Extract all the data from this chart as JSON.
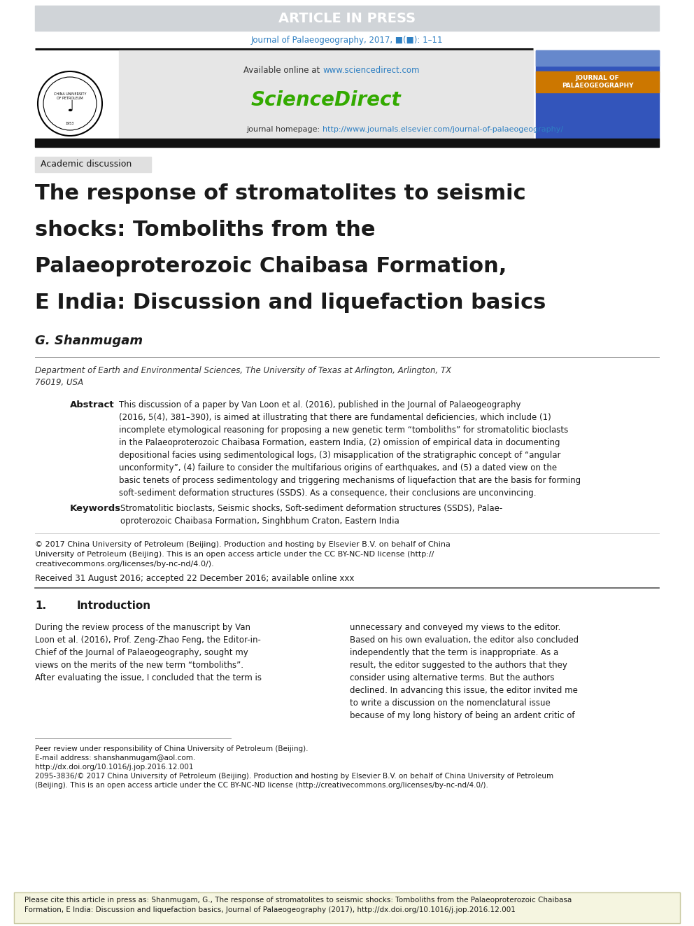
{
  "page_bg": "#ffffff",
  "header_banner_color": "#d0d4d8",
  "header_banner_text": "ARTICLE IN PRESS",
  "header_banner_text_color": "#ffffff",
  "journal_line_color": "#2e7fc2",
  "journal_line_text": "Journal of Palaeogeography, 2017, ■(■): 1–11",
  "thick_rule_color": "#111111",
  "sd_box_bg": "#e6e6e6",
  "sd_url_color": "#2e7fc2",
  "sd_logo_text": "ScienceDirect",
  "sd_logo_color": "#33aa00",
  "sd_homepage_url": "http://www.journals.elsevier.com/journal-of-palaeogeography/",
  "sd_homepage_url_color": "#2e7fc2",
  "section_tag_text": "Academic discussion",
  "section_tag_bg": "#e0e0e0",
  "title_text_line1": "The response of stromatolites to seismic",
  "title_text_line2": "shocks: Tomboliths from the",
  "title_text_line3": "Palaeoproterozoic Chaibasa Formation,",
  "title_text_line4": "E India: Discussion and liquefaction basics",
  "title_color": "#1a1a1a",
  "author_text": "G. Shanmugam",
  "author_color": "#1a1a1a",
  "affil_line1": "Department of Earth and Environmental Sciences, The University of Texas at Arlington, Arlington, TX",
  "affil_line2": "76019, USA",
  "affil_color": "#333333",
  "abstract_label": "Abstract",
  "abstract_text": "This discussion of a paper by Van Loon et al. (2016), published in the Journal of Palaeogeography\n(2016, 5(4), 381–390), is aimed at illustrating that there are fundamental deficiencies, which include (1)\nincomplete etymological reasoning for proposing a new genetic term “tomboliths” for stromatolitic bioclasts\nin the Palaeoproterozoic Chaibasa Formation, eastern India, (2) omission of empirical data in documenting\ndepositional facies using sedimentological logs, (3) misapplication of the stratigraphic concept of “angular\nunconformity”, (4) failure to consider the multifarious origins of earthquakes, and (5) a dated view on the\nbasic tenets of process sedimentology and triggering mechanisms of liquefaction that are the basis for forming\nsoft-sediment deformation structures (SSDS). As a consequence, their conclusions are unconvincing.",
  "keywords_label": "Keywords",
  "keywords_text": "Stromatolitic bioclasts, Seismic shocks, Soft-sediment deformation structures (SSDS), Palae-\noproterozoic Chaibasa Formation, Singhbhum Craton, Eastern India",
  "copyright_line1": "© 2017 China University of Petroleum (Beijing). Production and hosting by Elsevier B.V. on behalf of China",
  "copyright_line2": "University of Petroleum (Beijing). This is an open access article under the CC BY-NC-ND license (http://",
  "copyright_line3": "creativecommons.org/licenses/by-nc-nd/4.0/).",
  "received_text": "Received 31 August 2016; accepted 22 December 2016; available online xxx",
  "intro_num": "1.",
  "intro_title": "Introduction",
  "intro_col1_text": "During the review process of the manuscript by Van\nLoon et al. (2016), Prof. Zeng-Zhao Feng, the Editor-in-\nChief of the Journal of Palaeogeography, sought my\nviews on the merits of the new term “tomboliths”.\nAfter evaluating the issue, I concluded that the term is",
  "intro_col2_text": "unnecessary and conveyed my views to the editor.\nBased on his own evaluation, the editor also concluded\nindependently that the term is inappropriate. As a\nresult, the editor suggested to the authors that they\nconsider using alternative terms. But the authors\ndeclined. In advancing this issue, the editor invited me\nto write a discussion on the nomenclatural issue\nbecause of my long history of being an ardent critic of",
  "footnote_line1": "Peer review under responsibility of China University of Petroleum (Beijing).",
  "footnote_line2": "E-mail address: shanshanmugam@aol.com.",
  "footnote_line3": "http://dx.doi.org/10.1016/j.jop.2016.12.001",
  "footnote_line4": "2095-3836/© 2017 China University of Petroleum (Beijing). Production and hosting by Elsevier B.V. on behalf of China University of Petroleum",
  "footnote_line5": "(Beijing). This is an open access article under the CC BY-NC-ND license (http://creativecommons.org/licenses/by-nc-nd/4.0/).",
  "cite_text_line1": "Please cite this article in press as: Shanmugam, G., The response of stromatolites to seismic shocks: Tomboliths from the Palaeoproterozoic Chaibasa",
  "cite_text_line2": "Formation, E India: Discussion and liquefaction basics, Journal of Palaeogeography (2017), http://dx.doi.org/10.1016/j.jop.2016.12.001",
  "cite_box_bg": "#f5f5e0",
  "cite_box_border": "#c8c8a0",
  "link_color": "#2e7fc2",
  "cover_top_color": "#5577bb",
  "cover_orange_color": "#cc7700",
  "cover_blue_color": "#3355bb"
}
